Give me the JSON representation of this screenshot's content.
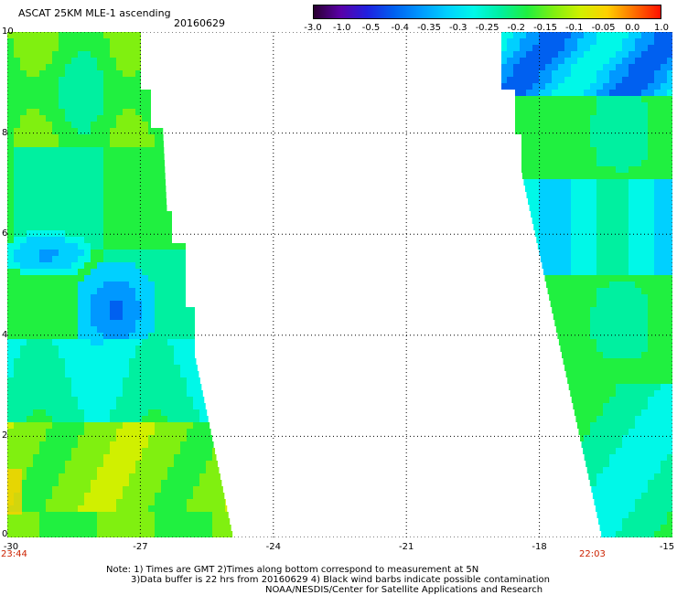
{
  "header": {
    "title": "ASCAT 25KM MLE-1 ascending",
    "date": "20160629"
  },
  "colorbar": {
    "labels": [
      "-3.0",
      "-1.0",
      "-0.5",
      "-0.4",
      "-0.35",
      "-0.3",
      "-0.25",
      "-0.2",
      "-0.15",
      "-0.1",
      "-0.05",
      "0.0",
      "1.0"
    ],
    "colors": [
      "#2a0030",
      "#5a00a8",
      "#2020e0",
      "#0060f0",
      "#0098ff",
      "#00d0ff",
      "#00f8e8",
      "#00f0a0",
      "#20f040",
      "#80f010",
      "#d0f000",
      "#ffd000",
      "#ff7000",
      "#ff1000"
    ]
  },
  "axes": {
    "x_ticks": [
      "-30",
      "-27",
      "-24",
      "-21",
      "-18",
      "-15"
    ],
    "y_ticks": [
      "0",
      "2",
      "4",
      "6",
      "8",
      "10"
    ],
    "x_range": [
      -30,
      -15
    ],
    "y_range": [
      0,
      10
    ],
    "grid": "dotted"
  },
  "times": {
    "left": "23:44",
    "right": "22:03",
    "color": "#cc2200"
  },
  "notes": {
    "line1": "Note: 1) Times are GMT 2)Times along bottom correspond to measurement at 5N",
    "line2": "3)Data buffer is 22 hrs from 20160629 4) Black wind barbs indicate possible contamination",
    "line3": "NOAA/NESDIS/Center for Satellite Applications and Research"
  }
}
